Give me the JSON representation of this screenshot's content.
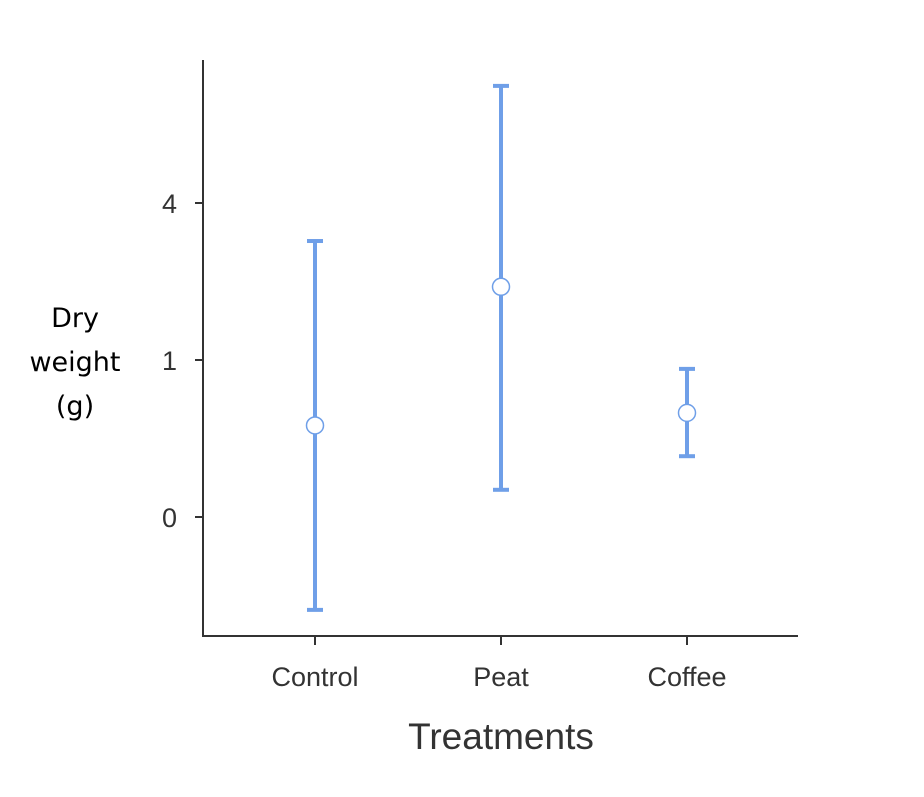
{
  "chart_data": {
    "type": "errorbar",
    "xlabel": "Treatments",
    "ylabel_lines": [
      "Dry",
      "weight",
      "(g)"
    ],
    "y_scale": "sqrt",
    "y_ticks": [
      0,
      1,
      4
    ],
    "y_tick_labels": [
      "0",
      "1",
      "4"
    ],
    "categories": [
      "Control",
      "Peat",
      "Coffee"
    ],
    "means": [
      0.34,
      2.15,
      0.44
    ],
    "lower": [
      -0.35,
      0.03,
      0.15
    ],
    "upper": [
      3.09,
      7.54,
      0.89
    ],
    "ylim": [
      -1.0,
      10.0
    ],
    "grid": false,
    "colors": {
      "series": "#6f9fe8",
      "axis": "#333333"
    }
  }
}
